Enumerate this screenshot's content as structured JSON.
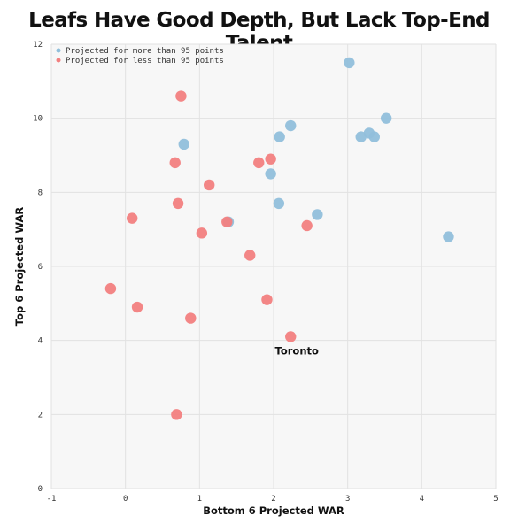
{
  "chart_data": {
    "type": "scatter",
    "title": "Leafs Have Good Depth, But Lack Top-End Talent",
    "xlabel": "Bottom 6 Projected WAR",
    "ylabel": "Top 6 Projected WAR",
    "xlim": [
      -1,
      5
    ],
    "ylim": [
      0,
      12
    ],
    "xticks": [
      "-1",
      "0",
      "1",
      "2",
      "3",
      "4",
      "5"
    ],
    "yticks": [
      "0",
      "2",
      "4",
      "6",
      "8",
      "10",
      "12"
    ],
    "grid": true,
    "legend_position": "top-left",
    "series": [
      {
        "name": "Projected for more than 95 points",
        "color": "#91bfdb",
        "points": [
          {
            "x": 3.02,
            "y": 11.5
          },
          {
            "x": 3.52,
            "y": 10.0
          },
          {
            "x": 3.29,
            "y": 9.6
          },
          {
            "x": 3.18,
            "y": 9.5
          },
          {
            "x": 3.36,
            "y": 9.5
          },
          {
            "x": 2.23,
            "y": 9.8
          },
          {
            "x": 2.08,
            "y": 9.5
          },
          {
            "x": 0.79,
            "y": 9.3
          },
          {
            "x": 1.96,
            "y": 8.5
          },
          {
            "x": 2.07,
            "y": 7.7
          },
          {
            "x": 2.59,
            "y": 7.4
          },
          {
            "x": 1.39,
            "y": 7.2
          },
          {
            "x": 4.36,
            "y": 6.8
          }
        ]
      },
      {
        "name": "Projected for less than 95 points",
        "color": "#f28080",
        "points": [
          {
            "x": 0.75,
            "y": 10.6
          },
          {
            "x": 0.67,
            "y": 8.8
          },
          {
            "x": 1.8,
            "y": 8.8
          },
          {
            "x": 1.96,
            "y": 8.9
          },
          {
            "x": 1.13,
            "y": 8.2
          },
          {
            "x": 0.71,
            "y": 7.7
          },
          {
            "x": 0.09,
            "y": 7.3
          },
          {
            "x": 1.37,
            "y": 7.2
          },
          {
            "x": 1.03,
            "y": 6.9
          },
          {
            "x": 2.45,
            "y": 7.1
          },
          {
            "x": 1.68,
            "y": 6.3
          },
          {
            "x": -0.2,
            "y": 5.4
          },
          {
            "x": 0.16,
            "y": 4.9
          },
          {
            "x": 1.91,
            "y": 5.1
          },
          {
            "x": 0.88,
            "y": 4.6
          },
          {
            "x": 2.23,
            "y": 4.1
          },
          {
            "x": 0.69,
            "y": 2.0
          }
        ]
      }
    ],
    "annotations": [
      {
        "text": "Toronto",
        "x": 2.23,
        "y": 4.1
      }
    ]
  }
}
